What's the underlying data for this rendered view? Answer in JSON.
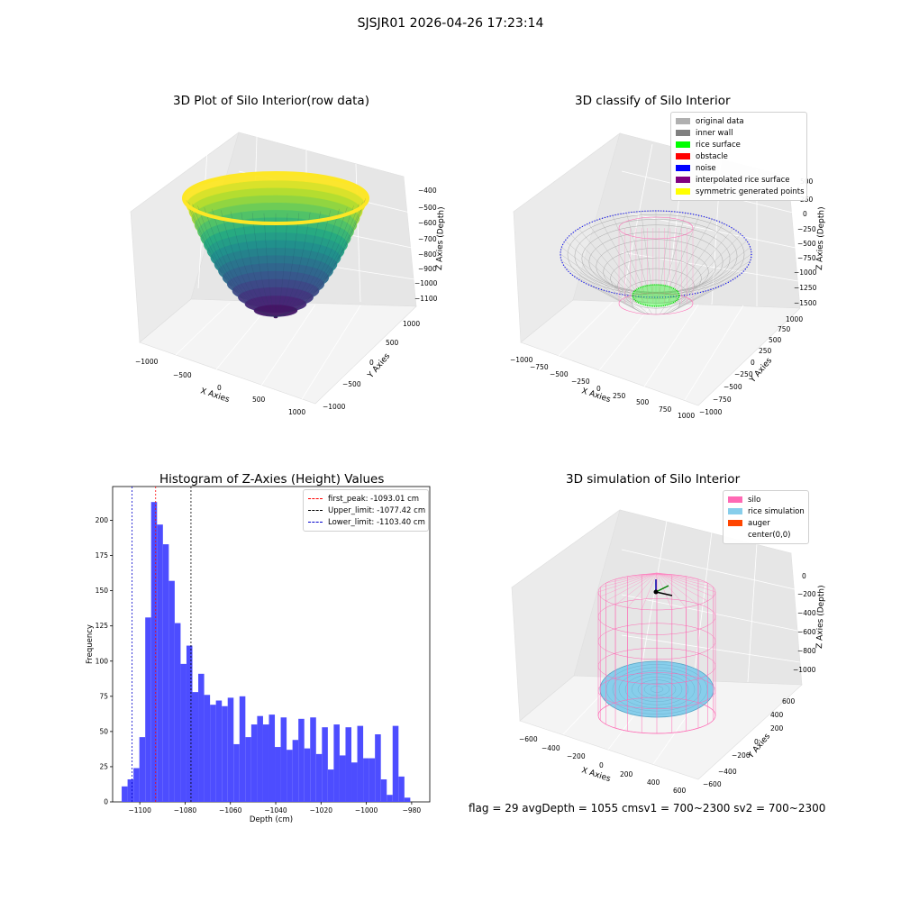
{
  "suptitle": "SJSJR01 2026-04-26 17:23:14",
  "status_text": "flag = 29  avgDepth = 1055 cmsv1 = 700~2300  sv2 = 700~2300",
  "colors": {
    "bars": "#4d4dff",
    "first_peak": "#ff0000",
    "upper_limit": "#000000",
    "lower_limit": "#0000cc",
    "silo": "#ff69b4",
    "rice": "#87ceeb",
    "auger": "#ff4500"
  },
  "chart_data": [
    {
      "type": "surface3d",
      "title": "3D Plot of Silo Interior(row data)",
      "xlabel": "X Axies",
      "ylabel": "Y Axies",
      "zlabel": "Z Axies (Depth)",
      "x_ticks": [
        "−1000",
        "−500",
        "0",
        "500",
        "1000"
      ],
      "y_ticks": [
        "−1000",
        "−500",
        "0",
        "500",
        "1000"
      ],
      "z_ticks": [
        "−400",
        "−500",
        "−600",
        "−700",
        "−800",
        "−900",
        "−1000",
        "−1100"
      ],
      "colormap": "viridis",
      "zlim": [
        -1150,
        -380
      ]
    },
    {
      "type": "scatter3d",
      "title": "3D classify of Silo Interior",
      "xlabel": "X Axies",
      "ylabel": "Y Axies",
      "zlabel": "Z Axies (Depth)",
      "x_ticks": [
        "−1000",
        "−750",
        "−500",
        "−250",
        "0",
        "250",
        "500",
        "750",
        "1000"
      ],
      "y_ticks": [
        "−1000",
        "−750",
        "−500",
        "−250",
        "0",
        "250",
        "500",
        "750",
        "1000"
      ],
      "z_ticks": [
        "500",
        "250",
        "0",
        "−250",
        "−500",
        "−750",
        "−1000",
        "−1250",
        "−1500"
      ],
      "legend_position": "top-right",
      "legend": [
        {
          "label": "original data",
          "color": "#b0b0b0"
        },
        {
          "label": "inner wall",
          "color": "#808080"
        },
        {
          "label": "rice surface",
          "color": "#00ff00"
        },
        {
          "label": "obstacle",
          "color": "#ff0000"
        },
        {
          "label": "noise",
          "color": "#0000ff"
        },
        {
          "label": "interpolated rice surface",
          "color": "#800080"
        },
        {
          "label": "symmetric generated points",
          "color": "#ffff00"
        }
      ]
    },
    {
      "type": "bar",
      "title": "Histogram of Z-Axies (Height) Values",
      "xlabel": "Depth (cm)",
      "ylabel": "Frequency",
      "xlim": [
        -1112,
        -972
      ],
      "ylim": [
        0,
        224
      ],
      "x_ticks": [
        -1100,
        -1080,
        -1060,
        -1040,
        -1020,
        -1000,
        -980
      ],
      "x_tick_labels": [
        "−1100",
        "−1080",
        "−1060",
        "−1040",
        "−1020",
        "−1000",
        "−980"
      ],
      "y_ticks": [
        0,
        25,
        50,
        75,
        100,
        125,
        150,
        175,
        200
      ],
      "bin_start": -1108.0,
      "bin_width": 2.6,
      "values": [
        11,
        16,
        24,
        46,
        131,
        213,
        197,
        183,
        157,
        127,
        98,
        111,
        78,
        91,
        76,
        69,
        72,
        68,
        74,
        41,
        75,
        46,
        55,
        61,
        55,
        62,
        39,
        60,
        37,
        44,
        59,
        38,
        60,
        34,
        53,
        23,
        55,
        33,
        53,
        28,
        54,
        31,
        31,
        48,
        16,
        5,
        54,
        18,
        3
      ],
      "vlines": [
        {
          "label": "first_peak: -1093.01 cm",
          "x": -1093.01,
          "color": "#ff0000"
        },
        {
          "label": "Upper_limit: -1077.42 cm",
          "x": -1077.42,
          "color": "#000000"
        },
        {
          "label": "Lower_limit: -1103.40 cm",
          "x": -1103.4,
          "color": "#0000cc"
        }
      ],
      "legend_position": "top-right"
    },
    {
      "type": "mesh3d",
      "title": "3D simulation of Silo Interior",
      "xlabel": "X Axies",
      "ylabel": "Y Axies",
      "zlabel": "Z Axies (Depth)",
      "x_ticks": [
        "−600",
        "−400",
        "−200",
        "0",
        "200",
        "400",
        "600"
      ],
      "y_ticks": [
        "−600",
        "−400",
        "−200",
        "0",
        "200",
        "400",
        "600"
      ],
      "z_ticks": [
        "0",
        "−200",
        "−400",
        "−600",
        "−800",
        "−1000"
      ],
      "legend_position": "top-right",
      "legend": [
        {
          "label": "silo",
          "color": "#ff69b4"
        },
        {
          "label": "rice simulation",
          "color": "#87ceeb"
        },
        {
          "label": "auger",
          "color": "#ff4500"
        },
        {
          "label": "center(0,0)",
          "color": ""
        }
      ]
    }
  ]
}
